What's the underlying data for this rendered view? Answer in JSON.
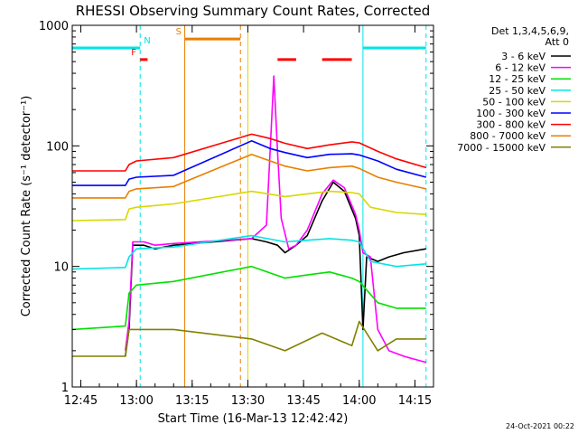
{
  "chart_data": {
    "type": "line",
    "title": "RHESSI Observing Summary Count Rates, Corrected",
    "xlabel": "Start Time (16-Mar-13 12:42:42)",
    "ylabel": "Corrected Count Rate (s⁻¹ detector⁻¹)",
    "yscale": "log",
    "ylim": [
      1,
      1000
    ],
    "xlim": [
      "12:42:42",
      "14:20:00"
    ],
    "x_ticks": [
      "12:45",
      "13:00",
      "13:15",
      "13:30",
      "13:45",
      "14:00",
      "14:15"
    ],
    "y_ticks": [
      "1",
      "10",
      "100",
      "1000"
    ],
    "timestamp": "24-Oct-2021 00:22",
    "legend": {
      "placement": "top-right",
      "header": [
        "Det 1,3,4,5,6,9,",
        "Att 0"
      ]
    },
    "flags": [
      {
        "label": "N",
        "color": "#00e5e5",
        "segments": [
          [
            "12:42:42",
            "13:01"
          ],
          [
            "14:01",
            "14:18"
          ]
        ],
        "level": 650
      },
      {
        "label": "F",
        "color": "#ff0000",
        "segments": [
          [
            "13:01",
            "13:03"
          ],
          [
            "13:38",
            "13:43"
          ],
          [
            "13:50",
            "13:58"
          ]
        ],
        "level": 520
      },
      {
        "label": "S",
        "color": "#e87e00",
        "segments": [
          [
            "13:13",
            "13:28"
          ]
        ],
        "level": 770
      }
    ],
    "markers": [
      {
        "time": "13:01",
        "color": "#00e5e5",
        "style": "dashed"
      },
      {
        "time": "14:01",
        "color": "#00e5e5",
        "style": "solid"
      },
      {
        "time": "14:18",
        "color": "#00e5e5",
        "style": "dashed"
      },
      {
        "time": "13:13",
        "color": "#e87e00",
        "style": "solid"
      },
      {
        "time": "13:28",
        "color": "#e87e00",
        "style": "dashed"
      },
      {
        "time": "13:30",
        "color": "#d8d800",
        "style": "solid"
      }
    ],
    "series": [
      {
        "name": "3 - 6 keV",
        "color": "#000000",
        "points": [
          [
            "12:57",
            1.8
          ],
          [
            "12:58",
            3
          ],
          [
            "12:59",
            15
          ],
          [
            "13:02",
            15
          ],
          [
            "13:05",
            14
          ],
          [
            "13:10",
            15
          ],
          [
            "13:31",
            17
          ],
          [
            "13:35",
            16
          ],
          [
            "13:38",
            15
          ],
          [
            "13:40",
            13
          ],
          [
            "13:43",
            15
          ],
          [
            "13:46",
            18
          ],
          [
            "13:50",
            35
          ],
          [
            "13:53",
            50
          ],
          [
            "13:56",
            42
          ],
          [
            "13:59",
            25
          ],
          [
            "14:00",
            18
          ],
          [
            "14:01",
            3
          ],
          [
            "14:02",
            12
          ],
          [
            "14:05",
            11
          ],
          [
            "14:08",
            12
          ],
          [
            "14:12",
            13
          ],
          [
            "14:18",
            14
          ]
        ]
      },
      {
        "name": "6 - 12 keV",
        "color": "#ff00ff",
        "points": [
          [
            "12:57",
            2
          ],
          [
            "12:58",
            3.5
          ],
          [
            "12:59",
            16
          ],
          [
            "13:02",
            16
          ],
          [
            "13:05",
            15
          ],
          [
            "13:10",
            15.5
          ],
          [
            "13:31",
            17
          ],
          [
            "13:35",
            22
          ],
          [
            "13:36",
            90
          ],
          [
            "13:37",
            380
          ],
          [
            "13:38",
            90
          ],
          [
            "13:39",
            25
          ],
          [
            "13:41",
            14
          ],
          [
            "13:43",
            15
          ],
          [
            "13:46",
            20
          ],
          [
            "13:50",
            40
          ],
          [
            "13:53",
            52
          ],
          [
            "13:56",
            45
          ],
          [
            "13:59",
            27
          ],
          [
            "14:00",
            20
          ],
          [
            "14:01",
            13
          ],
          [
            "14:03",
            12
          ],
          [
            "14:05",
            3
          ],
          [
            "14:08",
            2
          ],
          [
            "14:12",
            1.8
          ],
          [
            "14:18",
            1.6
          ]
        ]
      },
      {
        "name": "12 - 25 keV",
        "color": "#00e000",
        "points": [
          [
            "12:42:42",
            3
          ],
          [
            "12:57",
            3.2
          ],
          [
            "12:58",
            6
          ],
          [
            "13:00",
            7
          ],
          [
            "13:10",
            7.5
          ],
          [
            "13:31",
            10
          ],
          [
            "13:40",
            8
          ],
          [
            "13:46",
            8.5
          ],
          [
            "13:52",
            9
          ],
          [
            "13:58",
            8
          ],
          [
            "14:00",
            7.5
          ],
          [
            "14:05",
            5
          ],
          [
            "14:10",
            4.5
          ],
          [
            "14:18",
            4.5
          ]
        ]
      },
      {
        "name": "25 - 50 keV",
        "color": "#00e5e5",
        "points": [
          [
            "12:42:42",
            9.5
          ],
          [
            "12:57",
            9.8
          ],
          [
            "12:58",
            12
          ],
          [
            "13:00",
            14
          ],
          [
            "13:10",
            14.5
          ],
          [
            "13:31",
            18
          ],
          [
            "13:40",
            16
          ],
          [
            "13:46",
            16.5
          ],
          [
            "13:52",
            17
          ],
          [
            "13:58",
            16.5
          ],
          [
            "14:00",
            16
          ],
          [
            "14:03",
            11
          ],
          [
            "14:10",
            10
          ],
          [
            "14:18",
            10.5
          ]
        ]
      },
      {
        "name": "50 - 100 keV",
        "color": "#d8d800",
        "points": [
          [
            "12:42:42",
            24
          ],
          [
            "12:57",
            24.5
          ],
          [
            "12:58",
            30
          ],
          [
            "13:00",
            31
          ],
          [
            "13:10",
            33
          ],
          [
            "13:31",
            42
          ],
          [
            "13:40",
            38
          ],
          [
            "13:46",
            40
          ],
          [
            "13:52",
            42
          ],
          [
            "13:58",
            41
          ],
          [
            "14:00",
            40
          ],
          [
            "14:03",
            31
          ],
          [
            "14:10",
            28
          ],
          [
            "14:18",
            27
          ]
        ]
      },
      {
        "name": "100 - 300 keV",
        "color": "#0000ff",
        "points": [
          [
            "12:42:42",
            47
          ],
          [
            "12:57",
            47
          ],
          [
            "12:58",
            53
          ],
          [
            "13:00",
            55
          ],
          [
            "13:10",
            57
          ],
          [
            "13:31",
            110
          ],
          [
            "13:36",
            95
          ],
          [
            "13:40",
            88
          ],
          [
            "13:46",
            80
          ],
          [
            "13:52",
            85
          ],
          [
            "13:58",
            86
          ],
          [
            "14:00",
            84
          ],
          [
            "14:05",
            75
          ],
          [
            "14:10",
            64
          ],
          [
            "14:18",
            55
          ]
        ]
      },
      {
        "name": "300 - 800 keV",
        "color": "#ff0000",
        "points": [
          [
            "12:42:42",
            62
          ],
          [
            "12:57",
            62
          ],
          [
            "12:58",
            70
          ],
          [
            "13:00",
            75
          ],
          [
            "13:10",
            80
          ],
          [
            "13:31",
            125
          ],
          [
            "13:36",
            115
          ],
          [
            "13:40",
            105
          ],
          [
            "13:46",
            95
          ],
          [
            "13:52",
            102
          ],
          [
            "13:58",
            108
          ],
          [
            "14:00",
            106
          ],
          [
            "14:05",
            90
          ],
          [
            "14:10",
            78
          ],
          [
            "14:18",
            66
          ]
        ]
      },
      {
        "name": "800 - 7000 keV",
        "color": "#e87e00",
        "points": [
          [
            "12:42:42",
            37
          ],
          [
            "12:57",
            37
          ],
          [
            "12:58",
            42
          ],
          [
            "13:00",
            44
          ],
          [
            "13:10",
            46
          ],
          [
            "13:31",
            85
          ],
          [
            "13:36",
            75
          ],
          [
            "13:40",
            68
          ],
          [
            "13:46",
            62
          ],
          [
            "13:52",
            66
          ],
          [
            "13:58",
            68
          ],
          [
            "14:00",
            65
          ],
          [
            "14:05",
            55
          ],
          [
            "14:10",
            50
          ],
          [
            "14:18",
            44
          ]
        ]
      },
      {
        "name": "7000 - 15000 keV",
        "color": "#808000",
        "points": [
          [
            "12:42:42",
            1.8
          ],
          [
            "12:57",
            1.8
          ],
          [
            "12:58",
            3
          ],
          [
            "13:00",
            3
          ],
          [
            "13:10",
            3
          ],
          [
            "13:31",
            2.5
          ],
          [
            "13:40",
            2
          ],
          [
            "13:50",
            2.8
          ],
          [
            "13:58",
            2.2
          ],
          [
            "14:00",
            3.5
          ],
          [
            "14:05",
            2
          ],
          [
            "14:10",
            2.5
          ],
          [
            "14:18",
            2.5
          ]
        ]
      }
    ]
  }
}
